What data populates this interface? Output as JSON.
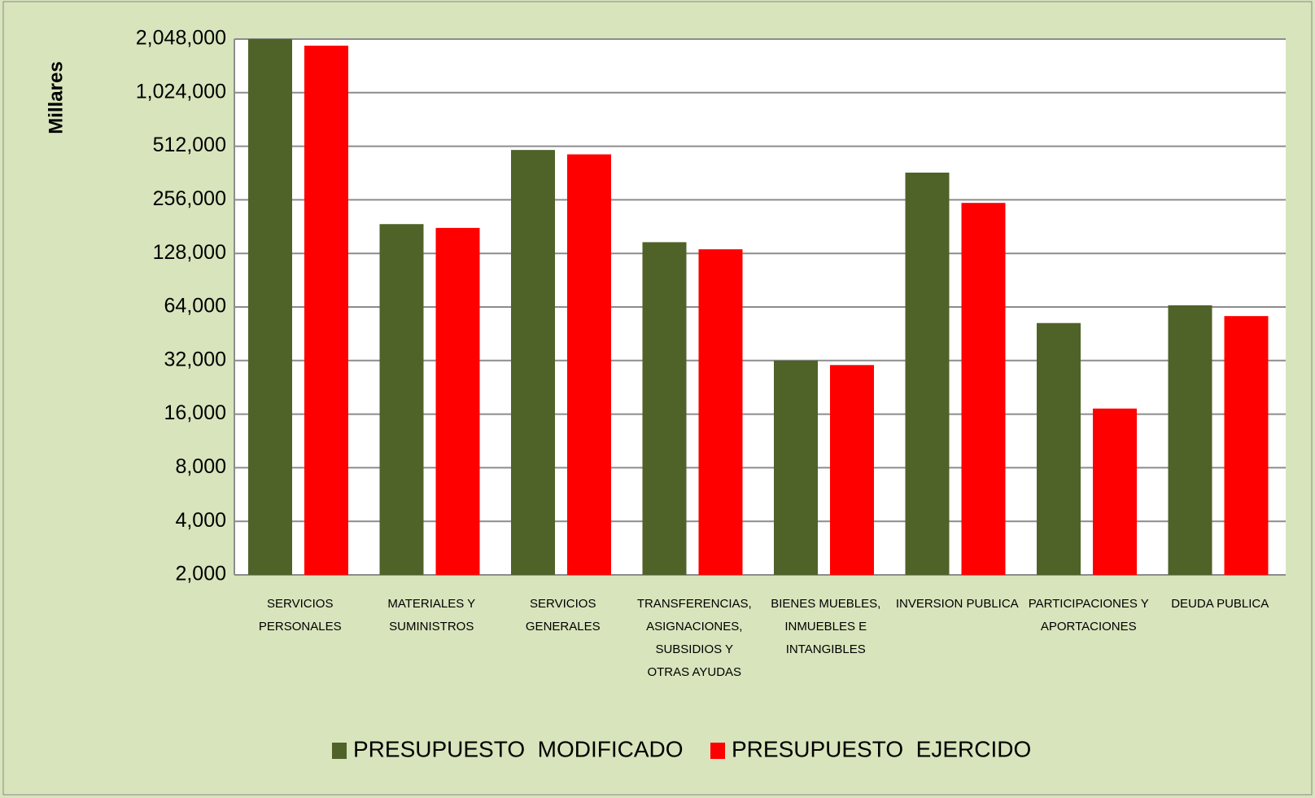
{
  "chart_data": {
    "type": "bar",
    "y_label": "Millares",
    "categories": [
      "SERVICIOS\nPERSONALES",
      "MATERIALES Y\nSUMINISTROS",
      "SERVICIOS\nGENERALES",
      "TRANSFERENCIAS,\nASIGNACIONES,\nSUBSIDIOS Y\nOTRAS AYUDAS",
      "BIENES MUEBLES,\nINMUEBLES E\nINTANGIBLES",
      "INVERSION PUBLICA",
      "PARTICIPACIONES Y\nAPORTACIONES",
      "DEUDA PUBLICA"
    ],
    "series": [
      {
        "name": "PRESUPUESTO  MODIFICADO",
        "color": "#4f6228",
        "values": [
          2050000,
          187000,
          488000,
          148000,
          32000,
          364000,
          52000,
          65400
        ]
      },
      {
        "name": "PRESUPUESTO  EJERCIDO",
        "color": "#ff0000",
        "values": [
          1880000,
          178000,
          461000,
          135000,
          30200,
          246000,
          17200,
          56900
        ]
      }
    ],
    "log_scale": true,
    "log_base": 2,
    "ylim": [
      2000,
      2048000
    ],
    "yticks": [
      {
        "value": 2000,
        "label": "2,000"
      },
      {
        "value": 4000,
        "label": "4,000"
      },
      {
        "value": 8000,
        "label": "8,000"
      },
      {
        "value": 16000,
        "label": "16,000"
      },
      {
        "value": 32000,
        "label": "32,000"
      },
      {
        "value": 64000,
        "label": "64,000"
      },
      {
        "value": 128000,
        "label": "128,000"
      },
      {
        "value": 256000,
        "label": "256,000"
      },
      {
        "value": 512000,
        "label": "512,000"
      },
      {
        "value": 1024000,
        "label": "1,024,000"
      },
      {
        "value": 2048000,
        "label": "2,048,000"
      }
    ],
    "grid": true,
    "legend": "bottom"
  }
}
